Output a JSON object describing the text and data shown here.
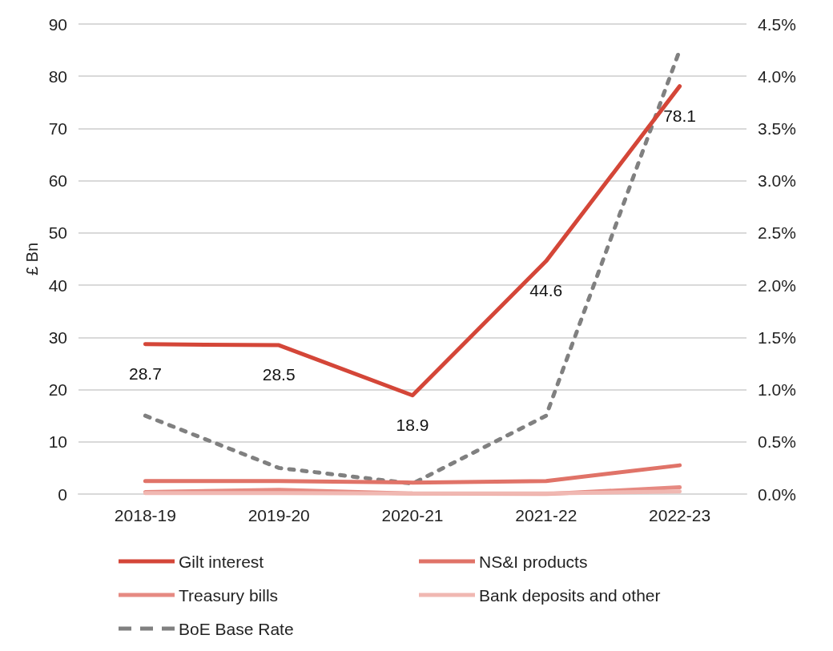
{
  "chart_data": {
    "type": "line",
    "ylabel": "£ Bn",
    "categories": [
      "2018-19",
      "2019-20",
      "2020-21",
      "2021-22",
      "2022-23"
    ],
    "series": [
      {
        "name": "Gilt interest",
        "color": "#d44638",
        "values": [
          28.7,
          28.5,
          18.9,
          44.6,
          78.1
        ],
        "value_labels": [
          "28.7",
          "28.5",
          "18.9",
          "44.6",
          "78.1"
        ]
      },
      {
        "name": "NS&I products",
        "color": "#e07368",
        "values": [
          2.5,
          2.5,
          2.2,
          2.5,
          5.5
        ]
      },
      {
        "name": "Treasury bills",
        "color": "#e68a82",
        "values": [
          0.4,
          0.8,
          0.1,
          0.0,
          1.3
        ]
      },
      {
        "name": "Bank deposits and other",
        "color": "#f0b8b2",
        "values": [
          0.2,
          0.2,
          0.1,
          0.1,
          0.5
        ]
      },
      {
        "name": "BoE Base Rate",
        "color": "#808080",
        "axis": "y2",
        "line_style": "dashed",
        "values": [
          0.75,
          0.25,
          0.1,
          0.75,
          4.25
        ]
      }
    ],
    "ylim": [
      0,
      90
    ],
    "yticks": [
      0,
      10,
      20,
      30,
      40,
      50,
      60,
      70,
      80,
      90
    ],
    "y2lim": [
      0,
      4.5
    ],
    "y2ticks": [
      {
        "value": 0,
        "label": "0.0%"
      },
      {
        "value": 0.5,
        "label": "0.5%"
      },
      {
        "value": 1,
        "label": "1.0%"
      },
      {
        "value": 1.5,
        "label": "1.5%"
      },
      {
        "value": 2,
        "label": "2.0%"
      },
      {
        "value": 2.5,
        "label": "2.5%"
      },
      {
        "value": 3,
        "label": "3.0%"
      },
      {
        "value": 3.5,
        "label": "3.5%"
      },
      {
        "value": 4,
        "label": "4.0%"
      },
      {
        "value": 4.5,
        "label": "4.5%"
      }
    ],
    "grid": "y",
    "legend": "bottom",
    "marker": "none",
    "line_style": "solid"
  }
}
